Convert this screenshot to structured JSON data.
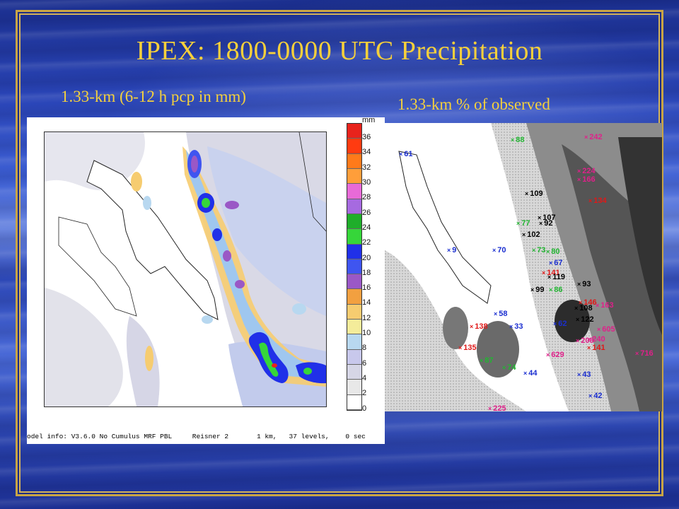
{
  "slide": {
    "title": "IPEX: 1800-0000 UTC Precipitation",
    "left_subtitle": "1.33-km (6-12 h pcp in mm)",
    "right_subtitle": "1.33-km % of observed",
    "model_info": "odel info: V3.6.0 No Cumulus MRF PBL     Reisner 2       1 km,   37 levels,    0 sec"
  },
  "colorbar": {
    "unit": "mm",
    "levels": [
      "36",
      "34",
      "32",
      "30",
      "28",
      "26",
      "24",
      "22",
      "20",
      "18",
      "16",
      "14",
      "12",
      "10",
      "8",
      "6",
      "4",
      "2",
      "0"
    ],
    "colors": [
      "#e8231c",
      "#ff3b10",
      "#ff7a1a",
      "#ff9e3a",
      "#e86ad8",
      "#a66ae0",
      "#1fae2a",
      "#36d63a",
      "#2030e8",
      "#3f55f0",
      "#9a58c6",
      "#f2a040",
      "#f6cc70",
      "#f4ec9a",
      "#b8d8f0",
      "#c8c8ec",
      "#d6d6e6",
      "#e8e8e8",
      "#ffffff"
    ]
  },
  "stations": [
    {
      "label": "61",
      "color": "#1a2ed0"
    },
    {
      "label": "88",
      "color": "#21b531"
    },
    {
      "label": "242",
      "color": "#e0208a"
    },
    {
      "label": "224",
      "color": "#e0208a"
    },
    {
      "label": "166",
      "color": "#e0208a"
    },
    {
      "label": "109",
      "color": "#000000"
    },
    {
      "label": "134",
      "color": "#e01818"
    },
    {
      "label": "107",
      "color": "#000000"
    },
    {
      "label": "77",
      "color": "#21b531"
    },
    {
      "label": "92",
      "color": "#000000"
    },
    {
      "label": "102",
      "color": "#000000"
    },
    {
      "label": "9",
      "color": "#1a2ed0"
    },
    {
      "label": "70",
      "color": "#1a2ed0"
    },
    {
      "label": "73",
      "color": "#21b531"
    },
    {
      "label": "80",
      "color": "#21b531"
    },
    {
      "label": "67",
      "color": "#1a2ed0"
    },
    {
      "label": "141",
      "color": "#e01818"
    },
    {
      "label": "119",
      "color": "#000000"
    },
    {
      "label": "93",
      "color": "#000000"
    },
    {
      "label": "99",
      "color": "#000000"
    },
    {
      "label": "86",
      "color": "#21b531"
    },
    {
      "label": "146",
      "color": "#e01818"
    },
    {
      "label": "163",
      "color": "#e0208a"
    },
    {
      "label": "58",
      "color": "#1a2ed0"
    },
    {
      "label": "108",
      "color": "#000000"
    },
    {
      "label": "122",
      "color": "#000000"
    },
    {
      "label": "138",
      "color": "#e01818"
    },
    {
      "label": "33",
      "color": "#1a2ed0"
    },
    {
      "label": "62",
      "color": "#1a2ed0"
    },
    {
      "label": "605",
      "color": "#e0208a"
    },
    {
      "label": "208",
      "color": "#e0208a"
    },
    {
      "label": "240",
      "color": "#e0208a"
    },
    {
      "label": "135",
      "color": "#e01818"
    },
    {
      "label": "141",
      "color": "#e01818"
    },
    {
      "label": "629",
      "color": "#e0208a"
    },
    {
      "label": "716",
      "color": "#e0208a"
    },
    {
      "label": "87",
      "color": "#21b531"
    },
    {
      "label": "74",
      "color": "#21b531"
    },
    {
      "label": "44",
      "color": "#1a2ed0"
    },
    {
      "label": "43",
      "color": "#1a2ed0"
    },
    {
      "label": "42",
      "color": "#1a2ed0"
    },
    {
      "label": "225",
      "color": "#e0208a"
    }
  ]
}
